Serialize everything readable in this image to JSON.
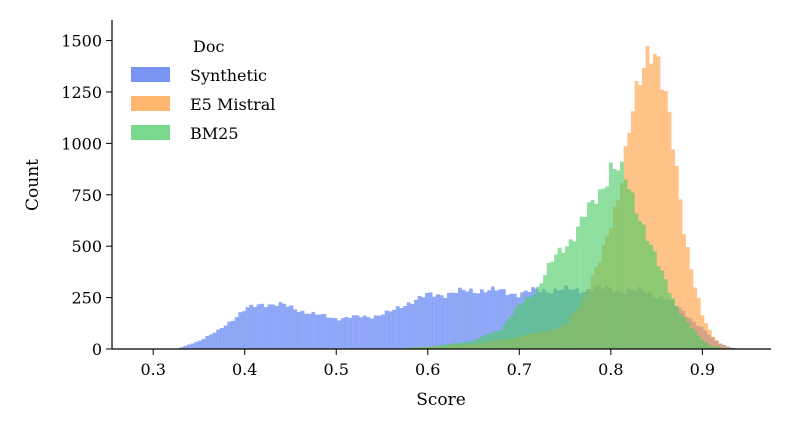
{
  "chart_data": {
    "type": "bar",
    "title": "",
    "xlabel": "Score",
    "ylabel": "Count",
    "xlim": [
      0.255,
      0.975
    ],
    "ylim": [
      0,
      1600
    ],
    "xticks": [
      "0.3",
      "0.4",
      "0.5",
      "0.6",
      "0.7",
      "0.8",
      "0.9"
    ],
    "yticks": [
      "0",
      "250",
      "500",
      "750",
      "1000",
      "1250",
      "1500"
    ],
    "grid": false,
    "legend": {
      "title": "Doc",
      "position": "top-left"
    },
    "bin_width": 0.004,
    "series": [
      {
        "name": "Synthetic",
        "color": "#4c72f0",
        "points": [
          [
            0.325,
            0
          ],
          [
            0.335,
            15
          ],
          [
            0.35,
            40
          ],
          [
            0.37,
            85
          ],
          [
            0.385,
            140
          ],
          [
            0.4,
            190
          ],
          [
            0.42,
            222
          ],
          [
            0.44,
            215
          ],
          [
            0.46,
            190
          ],
          [
            0.48,
            165
          ],
          [
            0.5,
            150
          ],
          [
            0.52,
            155
          ],
          [
            0.54,
            160
          ],
          [
            0.56,
            180
          ],
          [
            0.58,
            230
          ],
          [
            0.6,
            260
          ],
          [
            0.62,
            270
          ],
          [
            0.64,
            280
          ],
          [
            0.66,
            290
          ],
          [
            0.68,
            280
          ],
          [
            0.7,
            270
          ],
          [
            0.72,
            285
          ],
          [
            0.74,
            290
          ],
          [
            0.76,
            285
          ],
          [
            0.78,
            295
          ],
          [
            0.8,
            290
          ],
          [
            0.82,
            285
          ],
          [
            0.84,
            275
          ],
          [
            0.86,
            245
          ],
          [
            0.88,
            180
          ],
          [
            0.9,
            100
          ],
          [
            0.91,
            55
          ],
          [
            0.92,
            25
          ],
          [
            0.93,
            8
          ],
          [
            0.94,
            0
          ]
        ]
      },
      {
        "name": "E5 Mistral",
        "color": "#ff9f40",
        "points": [
          [
            0.55,
            0
          ],
          [
            0.6,
            10
          ],
          [
            0.65,
            25
          ],
          [
            0.7,
            60
          ],
          [
            0.75,
            110
          ],
          [
            0.77,
            250
          ],
          [
            0.79,
            440
          ],
          [
            0.81,
            800
          ],
          [
            0.82,
            1050
          ],
          [
            0.83,
            1250
          ],
          [
            0.84,
            1460
          ],
          [
            0.845,
            1510
          ],
          [
            0.85,
            1460
          ],
          [
            0.86,
            1200
          ],
          [
            0.87,
            920
          ],
          [
            0.88,
            600
          ],
          [
            0.89,
            350
          ],
          [
            0.9,
            160
          ],
          [
            0.91,
            70
          ],
          [
            0.92,
            25
          ],
          [
            0.935,
            0
          ]
        ]
      },
      {
        "name": "BM25",
        "color": "#4ccb66",
        "points": [
          [
            0.55,
            0
          ],
          [
            0.6,
            10
          ],
          [
            0.65,
            40
          ],
          [
            0.68,
            100
          ],
          [
            0.7,
            210
          ],
          [
            0.72,
            300
          ],
          [
            0.74,
            450
          ],
          [
            0.76,
            560
          ],
          [
            0.78,
            700
          ],
          [
            0.79,
            790
          ],
          [
            0.8,
            890
          ],
          [
            0.81,
            860
          ],
          [
            0.82,
            780
          ],
          [
            0.83,
            680
          ],
          [
            0.84,
            550
          ],
          [
            0.85,
            420
          ],
          [
            0.86,
            330
          ],
          [
            0.87,
            230
          ],
          [
            0.88,
            150
          ],
          [
            0.89,
            90
          ],
          [
            0.9,
            45
          ],
          [
            0.91,
            15
          ],
          [
            0.93,
            0
          ]
        ]
      }
    ]
  }
}
